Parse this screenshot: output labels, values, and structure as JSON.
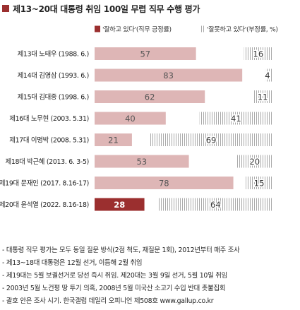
{
  "title": "제13~20대 대통령 취임 100일 무렵 직무 수행 평가",
  "colors": {
    "accent": "#9b2f2f",
    "positive_bar": "#deb6b6",
    "positive_highlight": "#9b2f2f",
    "negative_hatch": "#a9a9a9"
  },
  "chart_data": {
    "type": "bar",
    "orientation": "horizontal",
    "stacking": "diverging-split",
    "categories": [
      "제13대 노태우 (1988. 6.)",
      "제14대 김영삼 (1993. 6.)",
      "제15대 김대중 (1998. 6.)",
      "제16대 노무현 (2003. 5.31)",
      "제17대 이명박 (2008. 5.31)",
      "제18대 박근혜 (2013. 6. 3-5)",
      "제19대 문재인 (2017. 8.16-17)",
      "제20대 윤석열 (2022. 8.16-18)"
    ],
    "series": [
      {
        "name": "'잘하고 있다'(직무 긍정률)",
        "values": [
          57,
          83,
          62,
          40,
          21,
          53,
          78,
          28
        ]
      },
      {
        "name": "'잘못하고 있다'(부정률, %)",
        "values": [
          16,
          4,
          11,
          41,
          69,
          20,
          15,
          64
        ]
      }
    ],
    "highlight_index": 7,
    "xlim": [
      0,
      100
    ],
    "legend_position": "top-right",
    "grid": false
  },
  "footnotes": [
    "- 대통령 직무 평가는 모두 동일 질문 방식(2점 척도, 재질문 1회), 2012년부터 매주 조사",
    "- 제13~18대 대통령은 12월 선거, 이듬해 2월 취임",
    "- 제19대는 5월 보궐선거로 당선 즉시 취임. 제20대는 3월 9일 선거, 5월 10일 취임",
    "- 2003년 5월 노건평 땅 투기 의혹, 2008년 5월 미국산 소고기 수입 반대 촛불집회",
    "- 괄호 안은 조사 시기. 한국갤럽 데일리 오피니언 제508호 www.gallup.co.kr"
  ]
}
